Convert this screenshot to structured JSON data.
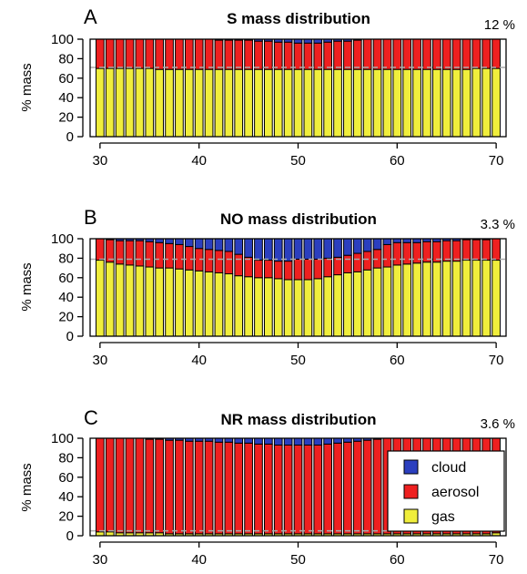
{
  "colors": {
    "cloud": "#2b3fbf",
    "aerosol": "#ee2020",
    "gas": "#f0ee3c",
    "frame": "#000000",
    "dashed": "#aaaaaa"
  },
  "legend": {
    "placement": "bottom-right of panel C",
    "entries": [
      {
        "key": "cloud",
        "label": "cloud"
      },
      {
        "key": "aerosol",
        "label": "aerosol"
      },
      {
        "key": "gas",
        "label": "gas"
      }
    ]
  },
  "chart_data": [
    {
      "type": "bar",
      "stacked": true,
      "panel_letter": "A",
      "title": "S mass distribution",
      "corner_value": "12 %",
      "ylabel": "% mass",
      "xlabel": "",
      "xlim": [
        29,
        71
      ],
      "ylim": [
        0,
        100
      ],
      "xticks": [
        30,
        40,
        50,
        60,
        70
      ],
      "yticks": [
        0,
        20,
        40,
        60,
        80,
        100
      ],
      "dashed_line_y": 71,
      "grid": false,
      "x": [
        30,
        31,
        32,
        33,
        34,
        35,
        36,
        37,
        38,
        39,
        40,
        41,
        42,
        43,
        44,
        45,
        46,
        47,
        48,
        49,
        50,
        51,
        52,
        53,
        54,
        55,
        56,
        57,
        58,
        59,
        60,
        61,
        62,
        63,
        64,
        65,
        66,
        67,
        68,
        69,
        70
      ],
      "series": [
        {
          "name": "gas",
          "values": [
            70,
            70,
            70,
            70,
            70,
            70,
            69,
            69,
            69,
            69,
            69,
            69,
            69,
            69,
            69,
            69,
            69,
            69,
            69,
            69,
            69,
            69,
            69,
            69,
            69,
            69,
            69,
            69,
            69,
            69,
            69,
            69,
            69,
            69,
            69,
            69,
            69,
            69,
            70,
            70,
            70
          ]
        },
        {
          "name": "aerosol",
          "values": [
            30,
            30,
            30,
            30,
            30,
            30,
            31,
            31,
            31,
            31,
            31,
            31,
            30,
            30,
            30,
            30,
            29,
            29,
            28,
            28,
            27,
            27,
            27,
            28,
            29,
            29,
            30,
            31,
            31,
            31,
            31,
            31,
            31,
            31,
            31,
            31,
            31,
            31,
            30,
            30,
            30
          ]
        },
        {
          "name": "cloud",
          "values": [
            0,
            0,
            0,
            0,
            0,
            0,
            0,
            0,
            0,
            0,
            0,
            0,
            1,
            1,
            1,
            1,
            2,
            2,
            3,
            3,
            4,
            4,
            4,
            3,
            2,
            2,
            1,
            0,
            0,
            0,
            0,
            0,
            0,
            0,
            0,
            0,
            0,
            0,
            0,
            0,
            0
          ]
        }
      ]
    },
    {
      "type": "bar",
      "stacked": true,
      "panel_letter": "B",
      "title": "NO mass distribution",
      "corner_value": "3.3 %",
      "ylabel": "% mass",
      "xlabel": "",
      "xlim": [
        29,
        71
      ],
      "ylim": [
        0,
        100
      ],
      "xticks": [
        30,
        40,
        50,
        60,
        70
      ],
      "yticks": [
        0,
        20,
        40,
        60,
        80,
        100
      ],
      "dashed_line_y": 79,
      "grid": false,
      "x": [
        30,
        31,
        32,
        33,
        34,
        35,
        36,
        37,
        38,
        39,
        40,
        41,
        42,
        43,
        44,
        45,
        46,
        47,
        48,
        49,
        50,
        51,
        52,
        53,
        54,
        55,
        56,
        57,
        58,
        59,
        60,
        61,
        62,
        63,
        64,
        65,
        66,
        67,
        68,
        69,
        70
      ],
      "series": [
        {
          "name": "gas",
          "values": [
            78,
            76,
            74,
            73,
            72,
            71,
            70,
            70,
            69,
            68,
            67,
            66,
            65,
            64,
            62,
            61,
            60,
            60,
            59,
            58,
            58,
            58,
            59,
            61,
            63,
            65,
            66,
            68,
            70,
            71,
            73,
            74,
            75,
            76,
            76,
            77,
            77,
            78,
            78,
            78,
            78
          ]
        },
        {
          "name": "aerosol",
          "values": [
            22,
            23,
            24,
            25,
            26,
            26,
            26,
            25,
            25,
            24,
            23,
            23,
            23,
            23,
            22,
            20,
            18,
            18,
            18,
            19,
            21,
            21,
            20,
            19,
            18,
            18,
            19,
            19,
            19,
            23,
            23,
            22,
            21,
            21,
            21,
            21,
            21,
            21,
            21,
            21,
            22
          ]
        },
        {
          "name": "cloud",
          "values": [
            0,
            1,
            2,
            2,
            2,
            3,
            4,
            5,
            6,
            8,
            10,
            11,
            12,
            13,
            16,
            19,
            22,
            22,
            23,
            23,
            21,
            21,
            21,
            20,
            19,
            17,
            15,
            13,
            11,
            6,
            4,
            4,
            4,
            3,
            3,
            2,
            2,
            1,
            1,
            1,
            0
          ]
        }
      ]
    },
    {
      "type": "bar",
      "stacked": true,
      "panel_letter": "C",
      "title": "NR mass distribution",
      "corner_value": "3.6 %",
      "ylabel": "% mass",
      "xlabel": "",
      "xlim": [
        29,
        71
      ],
      "ylim": [
        0,
        100
      ],
      "xticks": [
        30,
        40,
        50,
        60,
        70
      ],
      "yticks": [
        0,
        20,
        40,
        60,
        80,
        100
      ],
      "dashed_line_y": 5,
      "grid": false,
      "x": [
        30,
        31,
        32,
        33,
        34,
        35,
        36,
        37,
        38,
        39,
        40,
        41,
        42,
        43,
        44,
        45,
        46,
        47,
        48,
        49,
        50,
        51,
        52,
        53,
        54,
        55,
        56,
        57,
        58,
        59,
        60,
        61,
        62,
        63,
        64,
        65,
        66,
        67,
        68,
        69,
        70
      ],
      "series": [
        {
          "name": "gas",
          "values": [
            4,
            4,
            3,
            3,
            3,
            3,
            3,
            2,
            2,
            2,
            2,
            2,
            2,
            2,
            2,
            2,
            2,
            2,
            2,
            2,
            2,
            2,
            2,
            2,
            2,
            2,
            2,
            2,
            2,
            2,
            2,
            2,
            2,
            2,
            2,
            2,
            2,
            2,
            2,
            2,
            3
          ]
        },
        {
          "name": "aerosol",
          "values": [
            96,
            96,
            97,
            97,
            97,
            96,
            96,
            96,
            96,
            95,
            95,
            95,
            94,
            94,
            93,
            93,
            92,
            92,
            91,
            91,
            91,
            91,
            91,
            92,
            93,
            94,
            95,
            96,
            97,
            98,
            98,
            98,
            98,
            98,
            98,
            98,
            98,
            98,
            98,
            98,
            97
          ]
        },
        {
          "name": "cloud",
          "values": [
            0,
            0,
            0,
            0,
            0,
            1,
            1,
            2,
            2,
            3,
            3,
            3,
            4,
            4,
            5,
            5,
            6,
            6,
            7,
            7,
            7,
            7,
            7,
            6,
            5,
            4,
            3,
            2,
            1,
            0,
            0,
            0,
            0,
            0,
            0,
            0,
            0,
            0,
            0,
            0,
            0
          ]
        }
      ]
    }
  ]
}
